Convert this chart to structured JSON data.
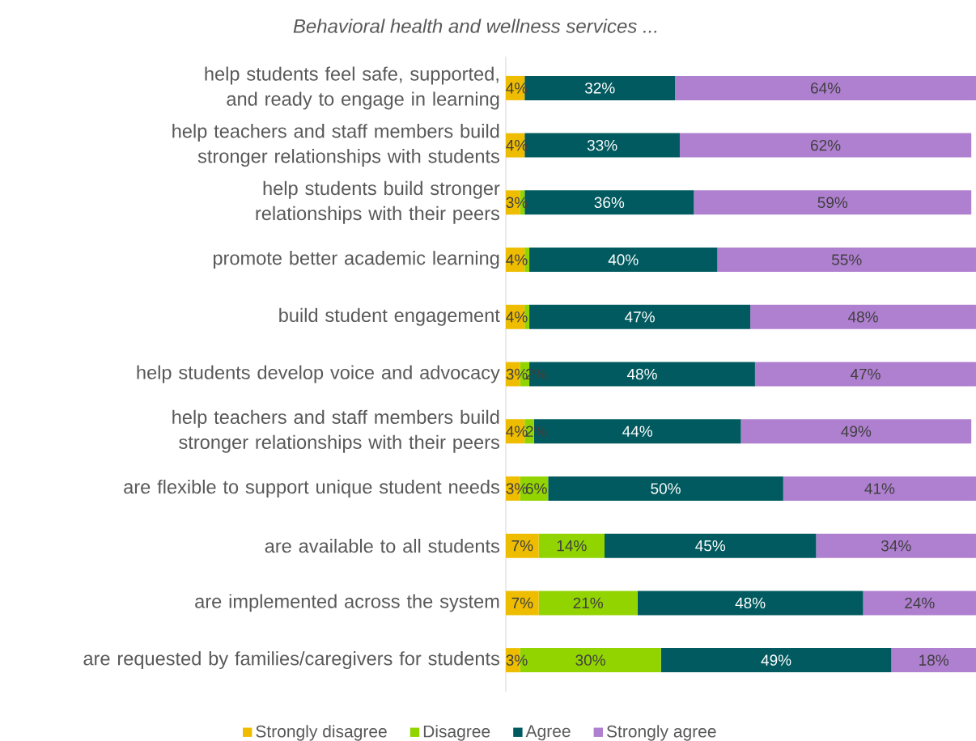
{
  "chart_data": {
    "type": "bar",
    "orientation": "horizontal",
    "stacked": true,
    "title": "Behavioral health and wellness services ...",
    "categories": [
      "help students feel safe, supported, and ready to engage in learning",
      "help teachers and staff members build stronger relationships with students",
      "help students build stronger relationships with their peers",
      "promote better academic learning",
      "build student engagement",
      "help students develop voice and advocacy",
      "help teachers and staff members build stronger relationships with their peers",
      "are flexible to support unique student needs",
      "are available to all students",
      "are implemented across the system",
      "are requested by families/caregivers for students"
    ],
    "series": [
      {
        "name": "Strongly disagree",
        "color": "#eebd00",
        "values": [
          4,
          4,
          3,
          4,
          4,
          3,
          4,
          3,
          7,
          7,
          3
        ],
        "value_labels": [
          "4%",
          "4%",
          "3%",
          "4%",
          "4%",
          "3%",
          "4%",
          "3%",
          "7%",
          "7%",
          "3%"
        ]
      },
      {
        "name": "Disagree",
        "color": "#92d400",
        "values": [
          0,
          0,
          1,
          1,
          1,
          2,
          2,
          6,
          14,
          21,
          30
        ],
        "value_labels": [
          null,
          null,
          null,
          null,
          null,
          "2%",
          "2%",
          "6%",
          "14%",
          "21%",
          "30%"
        ]
      },
      {
        "name": "Agree",
        "color": "#005a5f",
        "values": [
          32,
          33,
          36,
          40,
          47,
          48,
          44,
          50,
          45,
          48,
          49
        ],
        "value_labels": [
          "32%",
          "33%",
          "36%",
          "40%",
          "47%",
          "48%",
          "44%",
          "50%",
          "45%",
          "48%",
          "49%"
        ]
      },
      {
        "name": "Strongly agree",
        "color": "#af7fd0",
        "values": [
          64,
          62,
          59,
          55,
          48,
          47,
          49,
          41,
          34,
          24,
          18
        ],
        "value_labels": [
          "64%",
          "62%",
          "59%",
          "55%",
          "48%",
          "47%",
          "49%",
          "41%",
          "34%",
          "24%",
          "18%"
        ]
      }
    ],
    "xlim": [
      0,
      100
    ],
    "tick_labels": "y",
    "legend": "bottom"
  }
}
